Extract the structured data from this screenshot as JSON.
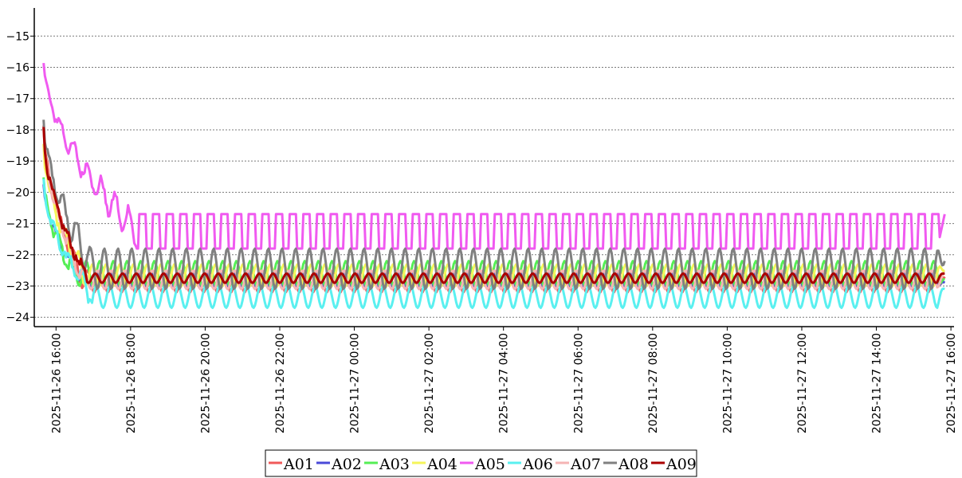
{
  "chart_data": {
    "type": "line",
    "x_range": [
      "2025-11-26 15:35",
      "2025-11-27 15:55"
    ],
    "x_ticks": [
      "2025-11-26 16:00",
      "2025-11-26 18:00",
      "2025-11-26 20:00",
      "2025-11-26 22:00",
      "2025-11-27 00:00",
      "2025-11-27 02:00",
      "2025-11-27 04:00",
      "2025-11-27 06:00",
      "2025-11-27 08:00",
      "2025-11-27 10:00",
      "2025-11-27 12:00",
      "2025-11-27 14:00",
      "2025-11-27 16:00"
    ],
    "y_ticks": [
      -15,
      -16,
      -17,
      -18,
      -19,
      -20,
      -21,
      -22,
      -23,
      -24
    ],
    "ylim": [
      -24.3,
      -14.1
    ],
    "grid": "horizontal dotted",
    "legend_placement": "bottom-center",
    "series": [
      {
        "name": "A01",
        "color": "#f05a5a",
        "x_start": "2025-11-26 15:40",
        "x_end": "2025-11-27 15:50",
        "start_value": -17.9,
        "settle_time": "2025-11-26 16:45",
        "period_minutes": 22,
        "min": -23.2,
        "max": -22.5,
        "final_value": -22.7
      },
      {
        "name": "A02",
        "color": "#4a4ad8",
        "x_start": "2025-11-26 15:40",
        "x_end": "2025-11-27 15:50",
        "start_value": -19.7,
        "settle_time": "2025-11-26 16:45",
        "period_minutes": 22,
        "min": -23.0,
        "max": -22.6,
        "final_value": -22.9
      },
      {
        "name": "A03",
        "color": "#55ee55",
        "x_start": "2025-11-26 15:40",
        "x_end": "2025-11-27 15:50",
        "start_value": -19.5,
        "settle_time": "2025-11-26 16:30",
        "period_minutes": 22,
        "min": -23.0,
        "max": -22.2,
        "final_value": -22.8
      },
      {
        "name": "A04",
        "color": "#f5f55a",
        "x_start": "2025-11-26 15:40",
        "x_end": "2025-11-27 15:50",
        "start_value": -18.5,
        "settle_time": "2025-11-26 16:45",
        "period_minutes": 22,
        "min": -23.0,
        "max": -22.3,
        "final_value": -22.5
      },
      {
        "name": "A05",
        "color": "#f05af0",
        "x_start": "2025-11-26 15:40",
        "x_end": "2025-11-27 15:50",
        "start_value": -15.8,
        "settle_time": "2025-11-26 18:10",
        "period_minutes": 22,
        "min": -21.8,
        "max": -20.7,
        "final_value": -20.7
      },
      {
        "name": "A06",
        "color": "#5af0f0",
        "x_start": "2025-11-26 15:40",
        "x_end": "2025-11-27 15:50",
        "start_value": -19.6,
        "settle_time": "2025-11-26 17:00",
        "period_minutes": 22,
        "min": -23.7,
        "max": -23.0,
        "final_value": -23.1
      },
      {
        "name": "A07",
        "color": "#f5b4b4",
        "x_start": "2025-11-26 15:40",
        "x_end": "2025-11-27 15:50",
        "start_value": -18.0,
        "settle_time": "2025-11-26 16:45",
        "period_minutes": 22,
        "min": -23.1,
        "max": -22.5,
        "final_value": -22.6
      },
      {
        "name": "A08",
        "color": "#808080",
        "x_start": "2025-11-26 15:40",
        "x_end": "2025-11-27 15:50",
        "start_value": -17.6,
        "settle_time": "2025-11-26 17:00",
        "period_minutes": 22,
        "min": -23.1,
        "max": -21.8,
        "final_value": -22.2
      },
      {
        "name": "A09",
        "color": "#aa0000",
        "x_start": "2025-11-26 15:40",
        "x_end": "2025-11-27 15:50",
        "start_value": -18.0,
        "settle_time": "2025-11-26 16:50",
        "period_minutes": 22,
        "min": -22.9,
        "max": -22.6,
        "final_value": -22.6
      }
    ]
  }
}
